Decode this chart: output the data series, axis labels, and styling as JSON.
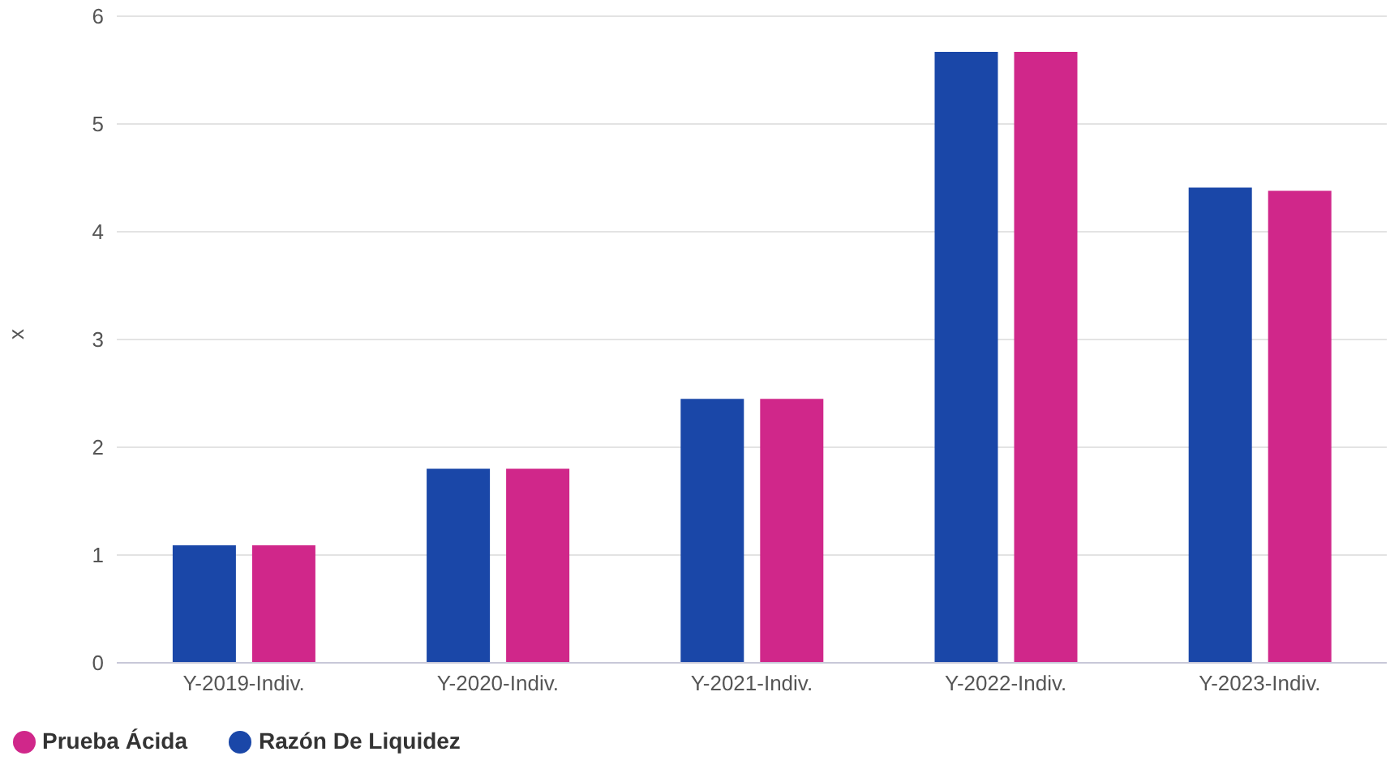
{
  "chart_data": {
    "type": "bar",
    "ylabel": "x",
    "categories": [
      "Y-2019-Indiv.",
      "Y-2020-Indiv.",
      "Y-2021-Indiv.",
      "Y-2022-Indiv.",
      "Y-2023-Indiv."
    ],
    "series": [
      {
        "name": "Razón De Liquidez",
        "color": "#1a47a8",
        "values": [
          1.09,
          1.8,
          2.45,
          5.67,
          4.41
        ]
      },
      {
        "name": "Prueba Ácida",
        "color": "#d0278a",
        "values": [
          1.09,
          1.8,
          2.45,
          5.67,
          4.38
        ]
      }
    ],
    "ylim": [
      0,
      6
    ],
    "yticks": [
      0,
      1,
      2,
      3,
      4,
      5,
      6
    ],
    "grid": "y",
    "legend": "bottom left"
  }
}
